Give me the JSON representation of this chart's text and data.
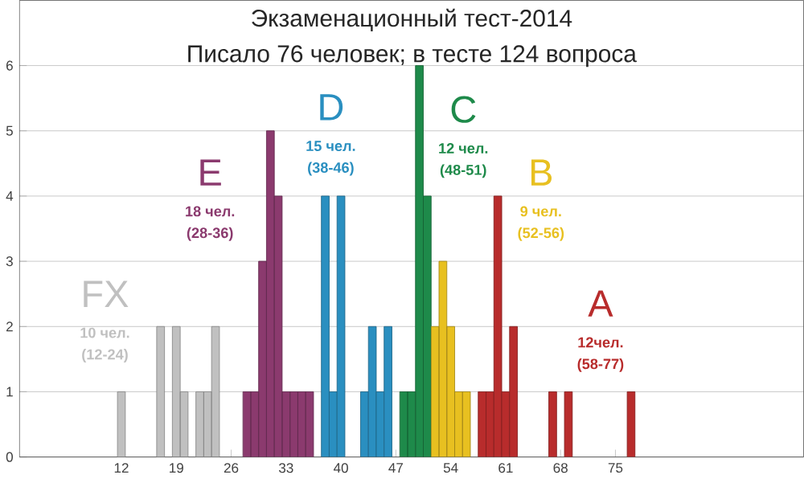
{
  "chart_data": {
    "type": "bar",
    "title": "Экзаменационный тест-2014",
    "subtitle": "Писало 76 человек;      в тесте 124 вопроса",
    "series": [
      {
        "color": "#c0c0c0",
        "x": [
          12,
          17,
          19,
          20,
          22,
          23,
          24
        ],
        "values": [
          1,
          2,
          2,
          1,
          1,
          1,
          2
        ]
      },
      {
        "color": "#8b3a6e",
        "x": [
          28,
          29,
          30,
          31,
          32,
          33,
          34,
          35,
          36
        ],
        "values": [
          1,
          1,
          3,
          5,
          4,
          1,
          1,
          1,
          1
        ]
      },
      {
        "color": "#2a8fc0",
        "x": [
          38,
          39,
          40,
          43,
          44,
          45,
          46
        ],
        "values": [
          4,
          1,
          4,
          1,
          2,
          1,
          2
        ]
      },
      {
        "color": "#1e8a4a",
        "x": [
          48,
          49,
          50,
          51
        ],
        "values": [
          1,
          1,
          6,
          4
        ]
      },
      {
        "color": "#e8c020",
        "x": [
          52,
          53,
          54,
          55,
          56
        ],
        "values": [
          2,
          3,
          2,
          1,
          1
        ]
      },
      {
        "color": "#b82c2c",
        "x": [
          58,
          59,
          60,
          61,
          62,
          67,
          69,
          77
        ],
        "values": [
          1,
          1,
          4,
          1,
          2,
          1,
          1,
          1
        ]
      }
    ],
    "annotations": [
      "FX",
      "10 чел.",
      "(12-24)",
      "E",
      "18 чел.",
      "(28-36)",
      "D",
      "15 чел.",
      "(38-46)",
      "C",
      "12 чел.",
      "(48-51)",
      "B",
      "9 чел.",
      "(52-56)",
      "A",
      "12чел.",
      "(58-77)"
    ],
    "xlim": [
      -1,
      99
    ],
    "xticks": [
      12,
      19,
      26,
      33,
      40,
      47,
      54,
      61,
      68,
      75
    ],
    "ylim": [
      0,
      7
    ],
    "yticks": [
      0,
      1,
      2,
      3,
      4,
      5,
      6
    ],
    "grid": "y"
  }
}
